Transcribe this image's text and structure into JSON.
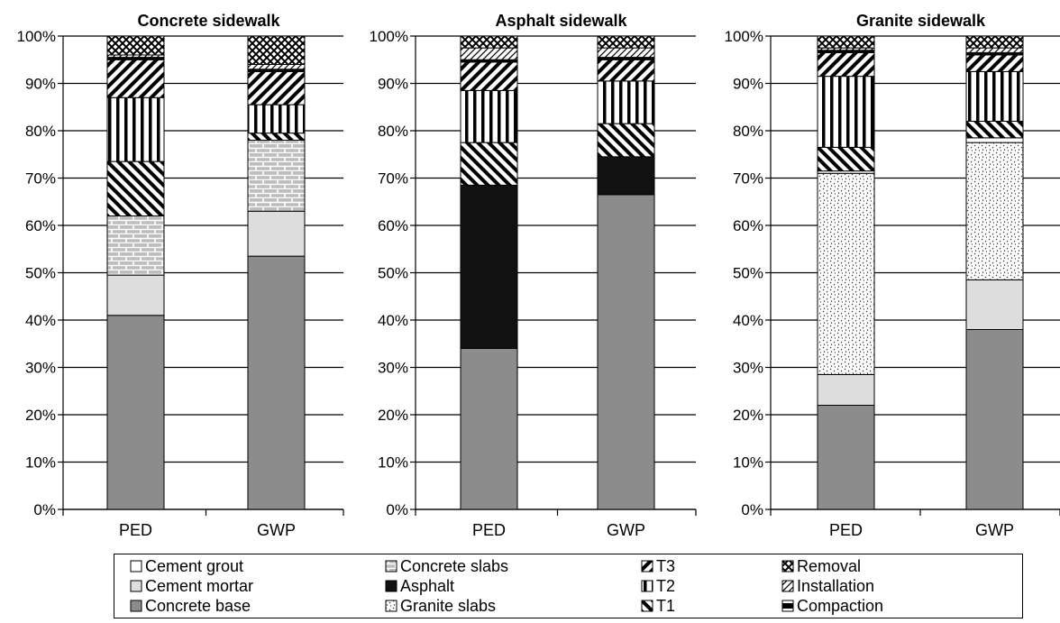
{
  "chart_data": [
    {
      "type": "bar",
      "stacked": true,
      "title": "Concrete sidewalk",
      "categories": [
        "PED",
        "GWP"
      ],
      "ylim": [
        0,
        100
      ],
      "yticks": [
        "0%",
        "10%",
        "20%",
        "30%",
        "40%",
        "50%",
        "60%",
        "70%",
        "80%",
        "90%",
        "100%"
      ],
      "series": [
        {
          "name": "Concrete base",
          "values": [
            41,
            53.5
          ]
        },
        {
          "name": "Cement mortar",
          "values": [
            8.5,
            9.5
          ]
        },
        {
          "name": "Concrete slabs",
          "values": [
            12.5,
            15
          ]
        },
        {
          "name": "T1",
          "values": [
            11.5,
            1.5
          ]
        },
        {
          "name": "T2",
          "values": [
            13.5,
            6
          ]
        },
        {
          "name": "T3",
          "values": [
            8,
            7
          ]
        },
        {
          "name": "Compaction",
          "values": [
            0.5,
            0.5
          ]
        },
        {
          "name": "Installation",
          "values": [
            0.5,
            1
          ]
        },
        {
          "name": "Removal",
          "values": [
            4,
            6
          ]
        }
      ]
    },
    {
      "type": "bar",
      "stacked": true,
      "title": "Asphalt sidewalk",
      "categories": [
        "PED",
        "GWP"
      ],
      "ylim": [
        0,
        100
      ],
      "yticks": [
        "0%",
        "10%",
        "20%",
        "30%",
        "40%",
        "50%",
        "60%",
        "70%",
        "80%",
        "90%",
        "100%"
      ],
      "series": [
        {
          "name": "Concrete base",
          "values": [
            34,
            66.5
          ]
        },
        {
          "name": "Asphalt",
          "values": [
            34.5,
            8
          ]
        },
        {
          "name": "T1",
          "values": [
            9,
            7
          ]
        },
        {
          "name": "T2",
          "values": [
            11,
            9
          ]
        },
        {
          "name": "T3",
          "values": [
            6,
            4.5
          ]
        },
        {
          "name": "Compaction",
          "values": [
            0.5,
            0.5
          ]
        },
        {
          "name": "Installation",
          "values": [
            2.5,
            2
          ]
        },
        {
          "name": "Removal",
          "values": [
            2.5,
            2.5
          ]
        }
      ]
    },
    {
      "type": "bar",
      "stacked": true,
      "title": "Granite sidewalk",
      "categories": [
        "PED",
        "GWP"
      ],
      "ylim": [
        0,
        100
      ],
      "yticks": [
        "0%",
        "10%",
        "20%",
        "30%",
        "40%",
        "50%",
        "60%",
        "70%",
        "80%",
        "90%",
        "100%"
      ],
      "series": [
        {
          "name": "Concrete base",
          "values": [
            22,
            38
          ]
        },
        {
          "name": "Cement mortar",
          "values": [
            6.5,
            10.5
          ]
        },
        {
          "name": "Granite slabs",
          "values": [
            42.5,
            29
          ]
        },
        {
          "name": "Cement grout",
          "values": [
            0.5,
            1
          ]
        },
        {
          "name": "T1",
          "values": [
            5,
            3.5
          ]
        },
        {
          "name": "T2",
          "values": [
            15,
            10.5
          ]
        },
        {
          "name": "T3",
          "values": [
            5,
            3.5
          ]
        },
        {
          "name": "Compaction",
          "values": [
            0.5,
            0.5
          ]
        },
        {
          "name": "Installation",
          "values": [
            0.5,
            1
          ]
        },
        {
          "name": "Removal",
          "values": [
            2.5,
            2.5
          ]
        }
      ]
    }
  ],
  "legend": {
    "items": [
      {
        "label": "Cement grout",
        "key": "grout"
      },
      {
        "label": "Cement mortar",
        "key": "mortar"
      },
      {
        "label": "Concrete base",
        "key": "base"
      },
      {
        "label": "Concrete slabs",
        "key": "slabs"
      },
      {
        "label": "Asphalt",
        "key": "asphalt"
      },
      {
        "label": "Granite slabs",
        "key": "granite"
      },
      {
        "label": "T3",
        "key": "t3"
      },
      {
        "label": "T2",
        "key": "t2"
      },
      {
        "label": "T1",
        "key": "t1"
      },
      {
        "label": "Removal",
        "key": "removal"
      },
      {
        "label": "Installation",
        "key": "installation"
      },
      {
        "label": "Compaction",
        "key": "compaction"
      }
    ]
  }
}
